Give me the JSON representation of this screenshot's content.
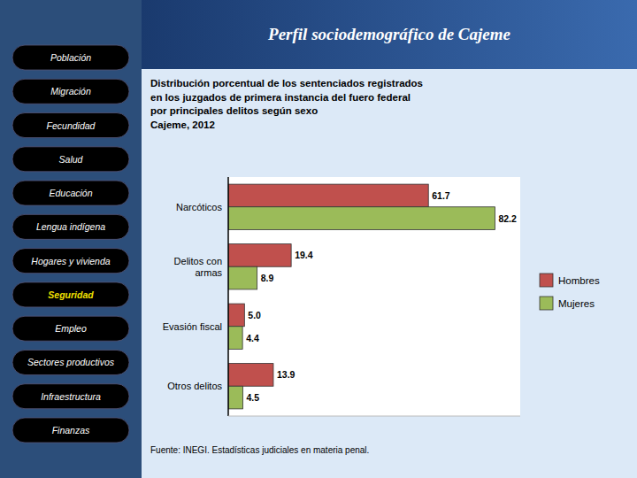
{
  "page": {
    "header": "Perfil sociodemográfico de Cajeme",
    "menu": [
      "Población",
      "Migración",
      "Fecundidad",
      "Salud",
      "Educación",
      "Lengua indígena",
      "Hogares y vivienda",
      "Seguridad",
      "Empleo",
      "Sectores productivos",
      "Infraestructura",
      "Finanzas"
    ],
    "menu_active": "Seguridad"
  },
  "chart_data": {
    "type": "bar",
    "orientation": "horizontal",
    "title": "Distribución porcentual de los sentenciados registrados\nen los juzgados de primera instancia del fuero federal\npor principales delitos según sexo\nCajeme, 2012",
    "annotations": [
      "Fuente: INEGI. Estadísticas judiciales en materia penal."
    ],
    "categories": [
      "Narcóticos",
      "Delitos con\narmas",
      "Evasión fiscal",
      "Otros delitos"
    ],
    "series": [
      {
        "name": "Hombres",
        "color": "#c0504d",
        "values": [
          61.7,
          19.4,
          5.0,
          13.9
        ],
        "value_labels": [
          "61.7",
          "19.4",
          "5.0",
          "13.9"
        ]
      },
      {
        "name": "Mujeres",
        "color": "#9bbb59",
        "values": [
          82.2,
          8.9,
          4.4,
          4.5
        ],
        "value_labels": [
          "82.2",
          "8.9",
          "4.4",
          "4.5"
        ]
      }
    ],
    "xlim": [
      0,
      90
    ],
    "grid": false,
    "legend": "right",
    "data_labels": true,
    "tick_labels": "y"
  }
}
